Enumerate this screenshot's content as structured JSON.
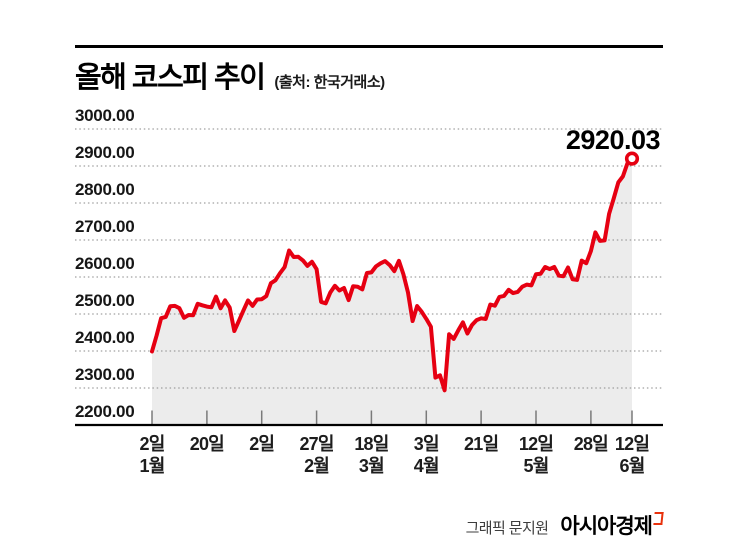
{
  "header": {
    "title": "올해 코스피 추이",
    "source": "(출처: 한국거래소)"
  },
  "chart_data": {
    "type": "line",
    "title": "올해 코스피 추이",
    "source": "한국거래소",
    "series_name": "KOSPI",
    "ylim": [
      2200,
      3000
    ],
    "y_tick_step": 100,
    "y_tick_labels": [
      "3000.00",
      "2900.00",
      "2800.00",
      "2700.00",
      "2600.00",
      "2500.00",
      "2400.00",
      "2300.00",
      "2200.00"
    ],
    "grid": "horizontal-dotted",
    "legend": "none",
    "end_label": "2920.03",
    "line_color": "#e60012",
    "fill_color": "#ececec",
    "x_ticks": [
      {
        "index": 0,
        "day": "2일",
        "month": "1월"
      },
      {
        "index": 12,
        "day": "20일",
        "month": ""
      },
      {
        "index": 24,
        "day": "2일",
        "month": ""
      },
      {
        "index": 36,
        "day": "27일",
        "month": "2월"
      },
      {
        "index": 48,
        "day": "18일",
        "month": "3월"
      },
      {
        "index": 60,
        "day": "3일",
        "month": "4월"
      },
      {
        "index": 72,
        "day": "21일",
        "month": ""
      },
      {
        "index": 84,
        "day": "12일",
        "month": "5월"
      },
      {
        "index": 96,
        "day": "28일",
        "month": ""
      },
      {
        "index": 105,
        "day": "12일",
        "month": "6월"
      }
    ],
    "dates": [
      "1/2",
      "1/3",
      "1/6",
      "1/7",
      "1/8",
      "1/9",
      "1/10",
      "1/13",
      "1/14",
      "1/15",
      "1/16",
      "1/17",
      "1/20",
      "1/21",
      "1/22",
      "1/23",
      "1/24",
      "1/31",
      "2/3",
      "2/4",
      "2/5",
      "2/6",
      "2/7",
      "2/10",
      "2/11",
      "2/12",
      "2/13",
      "2/14",
      "2/17",
      "2/18",
      "2/19",
      "2/20",
      "2/21",
      "2/24",
      "2/25",
      "2/26",
      "2/27",
      "2/28",
      "3/4",
      "3/5",
      "3/6",
      "3/7",
      "3/10",
      "3/11",
      "3/12",
      "3/13",
      "3/14",
      "3/17",
      "3/18",
      "3/19",
      "3/20",
      "3/21",
      "3/24",
      "3/25",
      "3/26",
      "3/27",
      "3/28",
      "3/31",
      "4/1",
      "4/2",
      "4/3",
      "4/4",
      "4/7",
      "4/8",
      "4/9",
      "4/10",
      "4/11",
      "4/14",
      "4/15",
      "4/16",
      "4/17",
      "4/18",
      "4/21",
      "4/22",
      "4/23",
      "4/24",
      "4/25",
      "4/28",
      "4/29",
      "4/30",
      "5/2",
      "5/7",
      "5/8",
      "5/9",
      "5/12",
      "5/13",
      "5/14",
      "5/15",
      "5/16",
      "5/19",
      "5/20",
      "5/21",
      "5/22",
      "5/23",
      "5/26",
      "5/27",
      "5/28",
      "5/29",
      "5/30",
      "6/2",
      "6/4",
      "6/5",
      "6/9",
      "6/10",
      "6/11",
      "6/12"
    ],
    "values": [
      2398.9,
      2441.9,
      2488.6,
      2492.1,
      2521.1,
      2521.9,
      2515.8,
      2489.6,
      2497.4,
      2496.8,
      2527.5,
      2523.6,
      2520.1,
      2518.0,
      2547.1,
      2515.5,
      2536.8,
      2517.4,
      2454.0,
      2481.7,
      2509.3,
      2536.8,
      2521.9,
      2539.1,
      2540.0,
      2548.4,
      2583.2,
      2591.1,
      2610.4,
      2626.8,
      2671.5,
      2654.1,
      2654.6,
      2645.0,
      2630.0,
      2641.0,
      2621.0,
      2532.8,
      2528.9,
      2558.1,
      2576.2,
      2563.5,
      2570.4,
      2537.6,
      2574.8,
      2573.6,
      2566.4,
      2610.7,
      2612.3,
      2628.6,
      2637.1,
      2643.1,
      2632.1,
      2615.8,
      2643.9,
      2607.2,
      2558.0,
      2481.1,
      2521.4,
      2505.9,
      2486.7,
      2465.4,
      2328.2,
      2334.2,
      2293.7,
      2445.1,
      2432.7,
      2455.9,
      2477.4,
      2447.4,
      2470.4,
      2483.4,
      2488.4,
      2486.6,
      2525.6,
      2522.3,
      2546.3,
      2548.9,
      2565.4,
      2556.6,
      2559.8,
      2573.8,
      2579.5,
      2577.3,
      2607.3,
      2608.6,
      2626.9,
      2621.4,
      2626.9,
      2603.4,
      2601.8,
      2625.6,
      2593.7,
      2592.1,
      2644.4,
      2637.2,
      2670.2,
      2720.6,
      2697.7,
      2699.0,
      2770.8,
      2812.1,
      2855.8,
      2871.9,
      2907.0,
      2920.03
    ]
  },
  "footer": {
    "credit": "그래픽 문지원",
    "brand": "아시아경제"
  }
}
